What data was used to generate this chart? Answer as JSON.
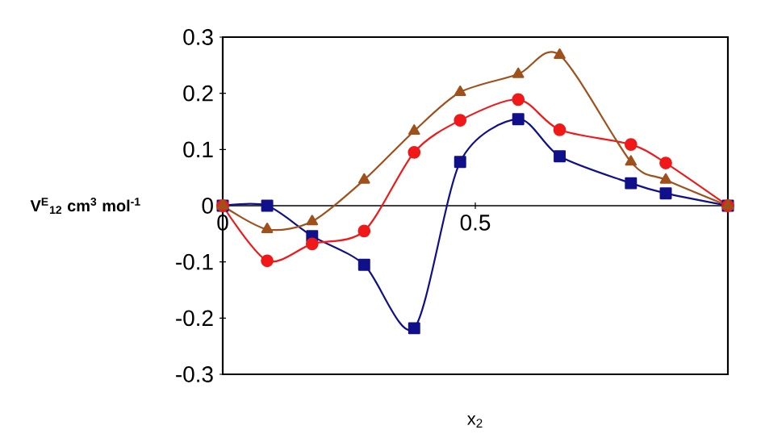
{
  "chart_data": {
    "type": "line",
    "xlabel": "x$_{2}$",
    "ylabel": "V$^{E}$$_{12}$ cm$^{3}$ mol$^{-1}$",
    "xlim": [
      0,
      1
    ],
    "ylim": [
      -0.3,
      0.3
    ],
    "xticks": [
      0,
      0.5,
      {
        "value": 1,
        "label": null
      }
    ],
    "yticks": [
      {
        "value": -0.3,
        "label": "-0.3"
      },
      {
        "value": -0.2,
        "label": "-0.2"
      },
      {
        "value": -0.1,
        "label": "-0.1"
      },
      {
        "value": 0,
        "label": "0"
      },
      {
        "value": 0.1,
        "label": "0.1"
      },
      {
        "value": 0.2,
        "label": "0.2"
      },
      {
        "value": 0.3,
        "label": "0.3"
      }
    ],
    "x": [
      0,
      0.088,
      0.177,
      0.28,
      0.379,
      0.47,
      0.585,
      0.667,
      0.808,
      0.877,
      1
    ],
    "grid": false,
    "line_style": "solid",
    "series": [
      {
        "color": "#10108a",
        "marker": "square",
        "values": [
          0,
          0,
          -0.054,
          -0.105,
          -0.218,
          0.078,
          0.154,
          0.088,
          0.04,
          0.022,
          0
        ]
      },
      {
        "color": "#f01818",
        "marker": "circle",
        "values": [
          0,
          -0.098,
          -0.068,
          -0.045,
          0.095,
          0.152,
          0.189,
          0.135,
          0.109,
          0.076,
          0
        ]
      },
      {
        "color": "#a0501a",
        "marker": "triangle",
        "values": [
          0,
          -0.042,
          -0.028,
          0.046,
          0.133,
          0.202,
          0.234,
          0.268,
          0.078,
          0.046,
          0
        ]
      }
    ]
  }
}
